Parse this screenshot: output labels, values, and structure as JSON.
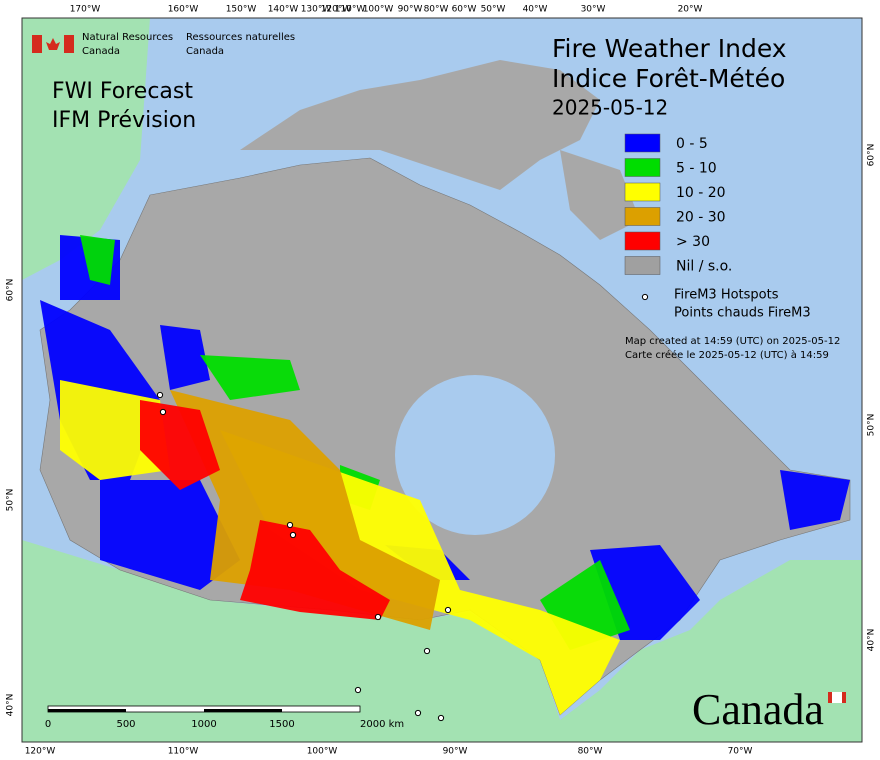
{
  "header": {
    "org_en": [
      "Natural Resources",
      "Canada"
    ],
    "org_fr": [
      "Ressources naturelles",
      "Canada"
    ]
  },
  "title": {
    "product_en": "FWI Forecast",
    "product_fr": "IFM Prévision",
    "index_en": "Fire Weather Index",
    "index_fr": "Indice Forêt-Météo",
    "date": "2025-05-12"
  },
  "legend": {
    "classes": [
      {
        "label": "0 - 5",
        "color": "#0000ff"
      },
      {
        "label": "5 - 10",
        "color": "#00dd00"
      },
      {
        "label": "10 - 20",
        "color": "#ffff00"
      },
      {
        "label": "20 - 30",
        "color": "#dca000"
      },
      {
        "label": "> 30",
        "color": "#ff0000"
      },
      {
        "label": "Nil / s.o.",
        "color": "#a0a0a0"
      }
    ],
    "hotspots": [
      "FireM3 Hotspots",
      "Points chauds FireM3"
    ]
  },
  "notes": [
    "Map created at 14:59 (UTC) on 2025-05-12",
    "Carte créée le 2025-05-12 (UTC) à 14:59"
  ],
  "graticule": {
    "top": [
      "170°W",
      "160°W",
      "150°W",
      "140°W",
      "130°W",
      "120°W",
      "110°W",
      "100°W",
      "90°W",
      "80°W",
      "60°W",
      "50°W",
      "40°W",
      "30°W",
      "20°W"
    ],
    "bottom": [
      "120°W",
      "110°W",
      "100°W",
      "90°W",
      "80°W",
      "70°W"
    ],
    "left": [
      "60°N",
      "50°N",
      "40°N"
    ],
    "right": [
      "60°N",
      "50°N",
      "40°N"
    ]
  },
  "scale_bar": [
    "0",
    "500",
    "1000",
    "1500",
    "2000 km"
  ],
  "wordmark": "Canada"
}
